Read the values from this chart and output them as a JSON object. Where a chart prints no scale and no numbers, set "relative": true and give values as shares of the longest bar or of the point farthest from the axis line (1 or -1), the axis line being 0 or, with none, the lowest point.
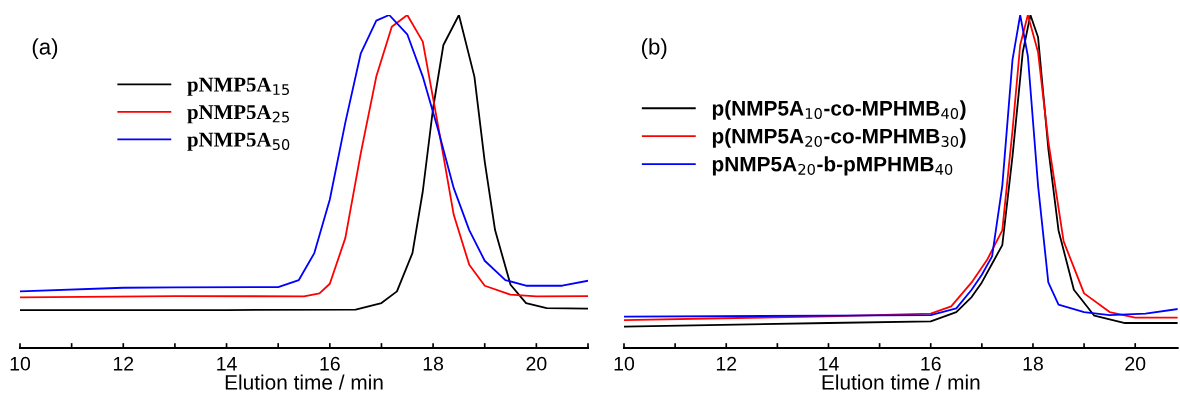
{
  "chart_data": [
    {
      "type": "line",
      "title": "(a)",
      "xlabel": "Elution time / min",
      "relative": true,
      "tick_labels": "x",
      "legend": "top left",
      "grid": false,
      "xlim": [
        10,
        21
      ],
      "xticks": [
        10,
        {
          "value": 11,
          "label": null
        },
        12,
        {
          "value": 13,
          "label": null
        },
        14,
        {
          "value": 15,
          "label": null
        },
        16,
        {
          "value": 17,
          "label": null
        },
        18,
        {
          "value": 19,
          "label": null
        },
        20,
        {
          "value": 21,
          "label": null
        }
      ],
      "series": [
        {
          "name": "pNMP5A$_{15}$",
          "color": "#000000",
          "x": [
            10,
            14,
            16.5,
            17.0,
            17.3,
            17.6,
            17.8,
            18.0,
            18.2,
            18.5,
            18.8,
            19.0,
            19.2,
            19.5,
            19.8,
            20.2,
            21.0
          ],
          "values": [
            0.114,
            0.114,
            0.115,
            0.135,
            0.17,
            0.285,
            0.47,
            0.72,
            0.91,
            1.0,
            0.815,
            0.56,
            0.354,
            0.19,
            0.135,
            0.12,
            0.118
          ]
        },
        {
          "name": "pNMP5A$_{25}$",
          "color": "#ff0000",
          "x": [
            10,
            13,
            15.5,
            15.8,
            16.0,
            16.3,
            16.6,
            16.9,
            17.2,
            17.5,
            17.8,
            18.1,
            18.4,
            18.7,
            19.0,
            19.5,
            20.0,
            21.0
          ],
          "values": [
            0.152,
            0.156,
            0.155,
            0.164,
            0.193,
            0.33,
            0.585,
            0.815,
            0.965,
            1.0,
            0.92,
            0.665,
            0.4,
            0.25,
            0.187,
            0.16,
            0.155,
            0.156
          ]
        },
        {
          "name": "pNMP5A$_{50}$",
          "color": "#0000ff",
          "x": [
            10,
            12,
            13,
            15.0,
            15.4,
            15.7,
            16.0,
            16.3,
            16.6,
            16.9,
            17.15,
            17.5,
            17.8,
            18.1,
            18.4,
            18.7,
            19.0,
            19.4,
            19.8,
            20.5,
            21.0
          ],
          "values": [
            0.17,
            0.181,
            0.182,
            0.183,
            0.204,
            0.285,
            0.446,
            0.677,
            0.885,
            0.983,
            1.0,
            0.942,
            0.815,
            0.654,
            0.48,
            0.354,
            0.262,
            0.204,
            0.187,
            0.187,
            0.202
          ]
        }
      ]
    },
    {
      "type": "line",
      "title": "(b)",
      "xlabel": "Elution time / min",
      "relative": true,
      "tick_labels": "x",
      "legend": "top left",
      "grid": false,
      "xlim": [
        10,
        20.83
      ],
      "xticks": [
        10,
        {
          "value": 11,
          "label": null
        },
        12,
        {
          "value": 13,
          "label": null
        },
        14,
        {
          "value": 15,
          "label": null
        },
        16,
        {
          "value": 17,
          "label": null
        },
        18,
        {
          "value": 19,
          "label": null
        },
        20
      ],
      "series": [
        {
          "name": "p(NMP5A$_{10}$-co-MPHMB$_{40}$)",
          "color": "#000000",
          "x": [
            10,
            14,
            16,
            16.5,
            16.8,
            17.0,
            17.2,
            17.4,
            17.6,
            17.8,
            17.95,
            18.1,
            18.3,
            18.5,
            18.8,
            19.2,
            19.8,
            20.83
          ],
          "values": [
            0.064,
            0.075,
            0.08,
            0.108,
            0.153,
            0.197,
            0.253,
            0.309,
            0.576,
            0.888,
            1.0,
            0.933,
            0.599,
            0.353,
            0.175,
            0.097,
            0.075,
            0.075
          ]
        },
        {
          "name": "p(NMP5A$_{20}$-co-MPHMB$_{30}$)",
          "color": "#ff0000",
          "x": [
            10,
            14,
            16,
            16.4,
            16.8,
            17.1,
            17.4,
            17.6,
            17.75,
            17.9,
            18.1,
            18.3,
            18.6,
            19.0,
            19.5,
            20.0,
            20.83
          ],
          "values": [
            0.084,
            0.095,
            0.103,
            0.125,
            0.197,
            0.264,
            0.353,
            0.654,
            0.91,
            1.0,
            0.888,
            0.621,
            0.32,
            0.164,
            0.108,
            0.091,
            0.091
          ]
        },
        {
          "name": "pNMP5A$_{20}$-b-pMPHMB$_{40}$",
          "color": "#0000ff",
          "x": [
            10,
            14,
            16,
            16.5,
            16.8,
            17.0,
            17.2,
            17.4,
            17.6,
            17.75,
            17.9,
            18.1,
            18.3,
            18.5,
            19.0,
            19.5,
            20.2,
            20.83
          ],
          "values": [
            0.094,
            0.097,
            0.099,
            0.119,
            0.175,
            0.22,
            0.275,
            0.487,
            0.866,
            1.0,
            0.877,
            0.487,
            0.197,
            0.13,
            0.108,
            0.099,
            0.103,
            0.117
          ]
        }
      ]
    }
  ]
}
